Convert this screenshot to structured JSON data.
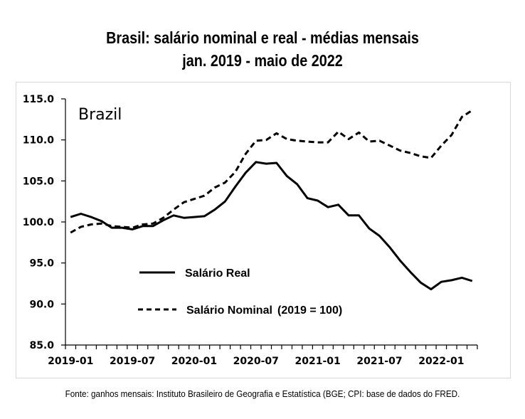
{
  "chart_data": {
    "type": "line",
    "title": "Brasil: salário nominal e real - médias mensais",
    "subtitle": "jan. 2019 - maio de 2022",
    "annotation": "Brazil",
    "xlabel": "",
    "ylabel": "",
    "ylim": [
      85,
      115
    ],
    "yticks": [
      "85.0",
      "90.0",
      "95.0",
      "100.0",
      "105.0",
      "110.0",
      "115.0"
    ],
    "ytick_values": [
      85,
      90,
      95,
      100,
      105,
      110,
      115
    ],
    "x": [
      "2019-01",
      "2019-02",
      "2019-03",
      "2019-04",
      "2019-05",
      "2019-06",
      "2019-07",
      "2019-08",
      "2019-09",
      "2019-10",
      "2019-11",
      "2019-12",
      "2020-01",
      "2020-02",
      "2020-03",
      "2020-04",
      "2020-05",
      "2020-06",
      "2020-07",
      "2020-08",
      "2020-09",
      "2020-10",
      "2020-11",
      "2020-12",
      "2021-01",
      "2021-02",
      "2021-03",
      "2021-04",
      "2021-05",
      "2021-06",
      "2021-07",
      "2021-08",
      "2021-09",
      "2021-10",
      "2021-11",
      "2021-12",
      "2022-01",
      "2022-02",
      "2022-03",
      "2022-04"
    ],
    "xtick_labels": [
      "2019-01",
      "2019-07",
      "2020-01",
      "2020-07",
      "2021-01",
      "2021-07",
      "2022-01"
    ],
    "grid": false,
    "legend_position": "lower-left inside plot",
    "series": [
      {
        "name": "Salário Real",
        "style": "solid",
        "color": "#000000",
        "values": [
          100.6,
          101.0,
          100.6,
          100.1,
          99.3,
          99.3,
          99.1,
          99.5,
          99.5,
          100.2,
          100.8,
          100.5,
          100.6,
          100.7,
          101.5,
          102.5,
          104.3,
          106.0,
          107.3,
          107.1,
          107.2,
          105.6,
          104.6,
          102.9,
          102.6,
          101.8,
          102.1,
          100.8,
          100.8,
          99.2,
          98.3,
          96.9,
          95.3,
          93.9,
          92.6,
          91.8,
          92.7,
          92.9,
          93.2,
          92.8
        ]
      },
      {
        "name": "Salário Nominal  (2019 = 100)",
        "style": "dashed",
        "color": "#000000",
        "values": [
          98.7,
          99.4,
          99.7,
          99.8,
          99.5,
          99.4,
          99.3,
          99.7,
          99.8,
          100.5,
          101.5,
          102.4,
          102.8,
          103.2,
          104.2,
          104.8,
          106.1,
          108.3,
          109.9,
          110.0,
          110.8,
          110.1,
          109.9,
          109.8,
          109.7,
          109.7,
          111.0,
          110.1,
          110.9,
          109.8,
          109.9,
          109.3,
          108.7,
          108.4,
          108.0,
          107.8,
          109.3,
          110.6,
          112.8,
          113.6
        ]
      }
    ],
    "legend": [
      "Salário Real",
      "Salário Nominal",
      "(2019 = 100)"
    ],
    "source": "Fonte: ganhos mensais: Instituto Brasileiro de Geografia e Estatística (BGE; CPI: base de dados do FRED."
  }
}
